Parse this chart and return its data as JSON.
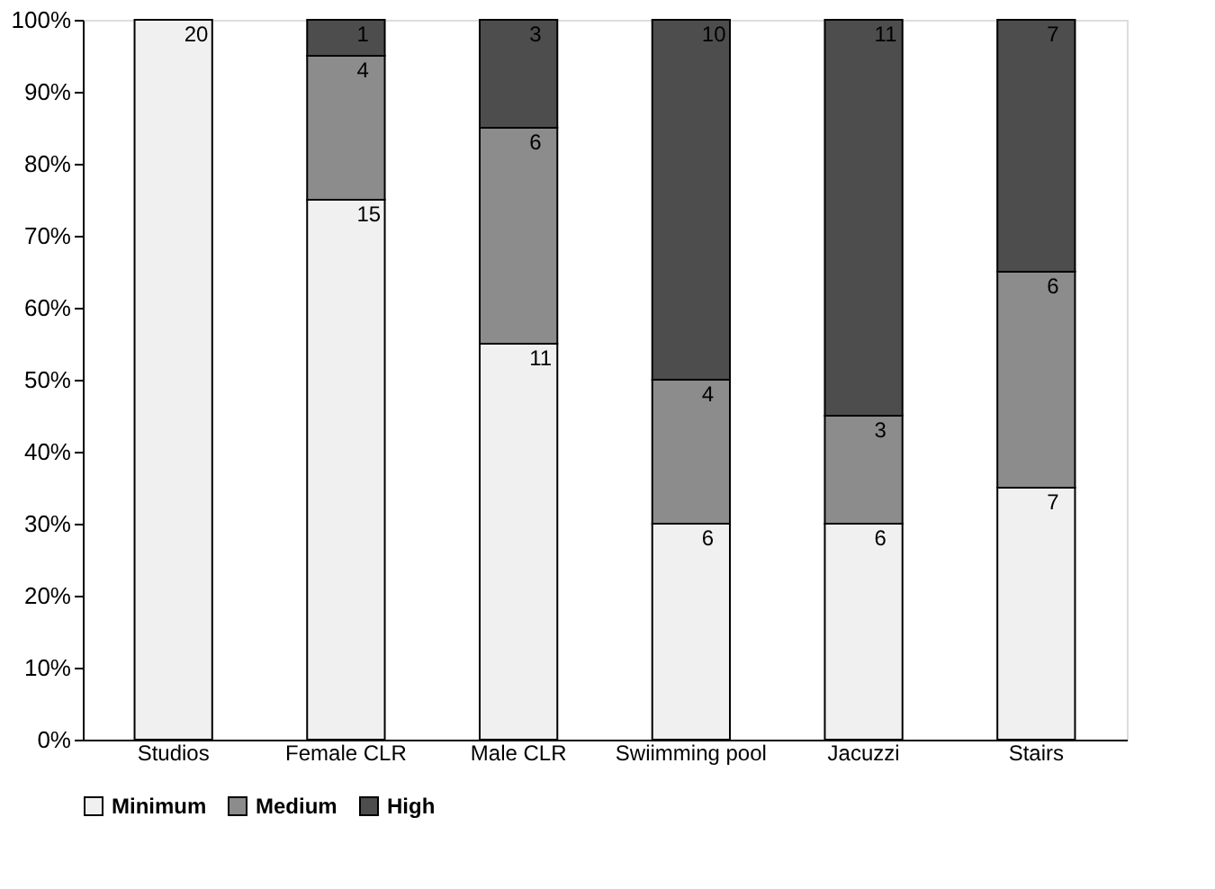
{
  "chart_data": {
    "type": "bar",
    "stacked": true,
    "categories": [
      "Studios",
      "Female CLR",
      "Male CLR",
      "Swiimming pool",
      "Jacuzzi",
      "Stairs"
    ],
    "series": [
      {
        "name": "Minimum",
        "color": "#f0f0f0",
        "values": [
          100,
          75,
          55,
          30,
          30,
          35
        ]
      },
      {
        "name": "Medium",
        "color": "#8c8c8c",
        "values": [
          0,
          20,
          30,
          20,
          15,
          30
        ]
      },
      {
        "name": "High",
        "color": "#4d4d4d",
        "values": [
          0,
          5,
          15,
          50,
          55,
          35
        ]
      }
    ],
    "annotations": [
      {
        "text": "20",
        "x": "Studios",
        "y": 100
      },
      {
        "text": "15",
        "x": "Female CLR",
        "y": 75
      },
      {
        "text": "4",
        "x": "Female CLR",
        "y": 95
      },
      {
        "text": "1",
        "x": "Female CLR",
        "y": 100
      },
      {
        "text": "11",
        "x": "Male CLR",
        "y": 55
      },
      {
        "text": "6",
        "x": "Male CLR",
        "y": 85
      },
      {
        "text": "3",
        "x": "Male CLR",
        "y": 100
      },
      {
        "text": "6",
        "x": "Swiimming pool",
        "y": 30
      },
      {
        "text": "4",
        "x": "Swiimming pool",
        "y": 50
      },
      {
        "text": "10",
        "x": "Swiimming pool",
        "y": 100
      },
      {
        "text": "6",
        "x": "Jacuzzi",
        "y": 30
      },
      {
        "text": "3",
        "x": "Jacuzzi",
        "y": 45
      },
      {
        "text": "11",
        "x": "Jacuzzi",
        "y": 100
      },
      {
        "text": "7",
        "x": "Stairs",
        "y": 35
      },
      {
        "text": "6",
        "x": "Stairs",
        "y": 65
      },
      {
        "text": "7",
        "x": "Stairs",
        "y": 100
      }
    ],
    "ylim": [
      0,
      100
    ],
    "yticks": [
      {
        "value": 0,
        "label": "0%"
      },
      {
        "value": 10,
        "label": "10%"
      },
      {
        "value": 20,
        "label": "20%"
      },
      {
        "value": 30,
        "label": "30%"
      },
      {
        "value": 40,
        "label": "40%"
      },
      {
        "value": 50,
        "label": "50%"
      },
      {
        "value": 60,
        "label": "60%"
      },
      {
        "value": 70,
        "label": "70%"
      },
      {
        "value": 80,
        "label": "80%"
      },
      {
        "value": 90,
        "label": "90%"
      },
      {
        "value": 100,
        "label": "100%"
      }
    ],
    "grid": false,
    "legend": "bottom"
  }
}
